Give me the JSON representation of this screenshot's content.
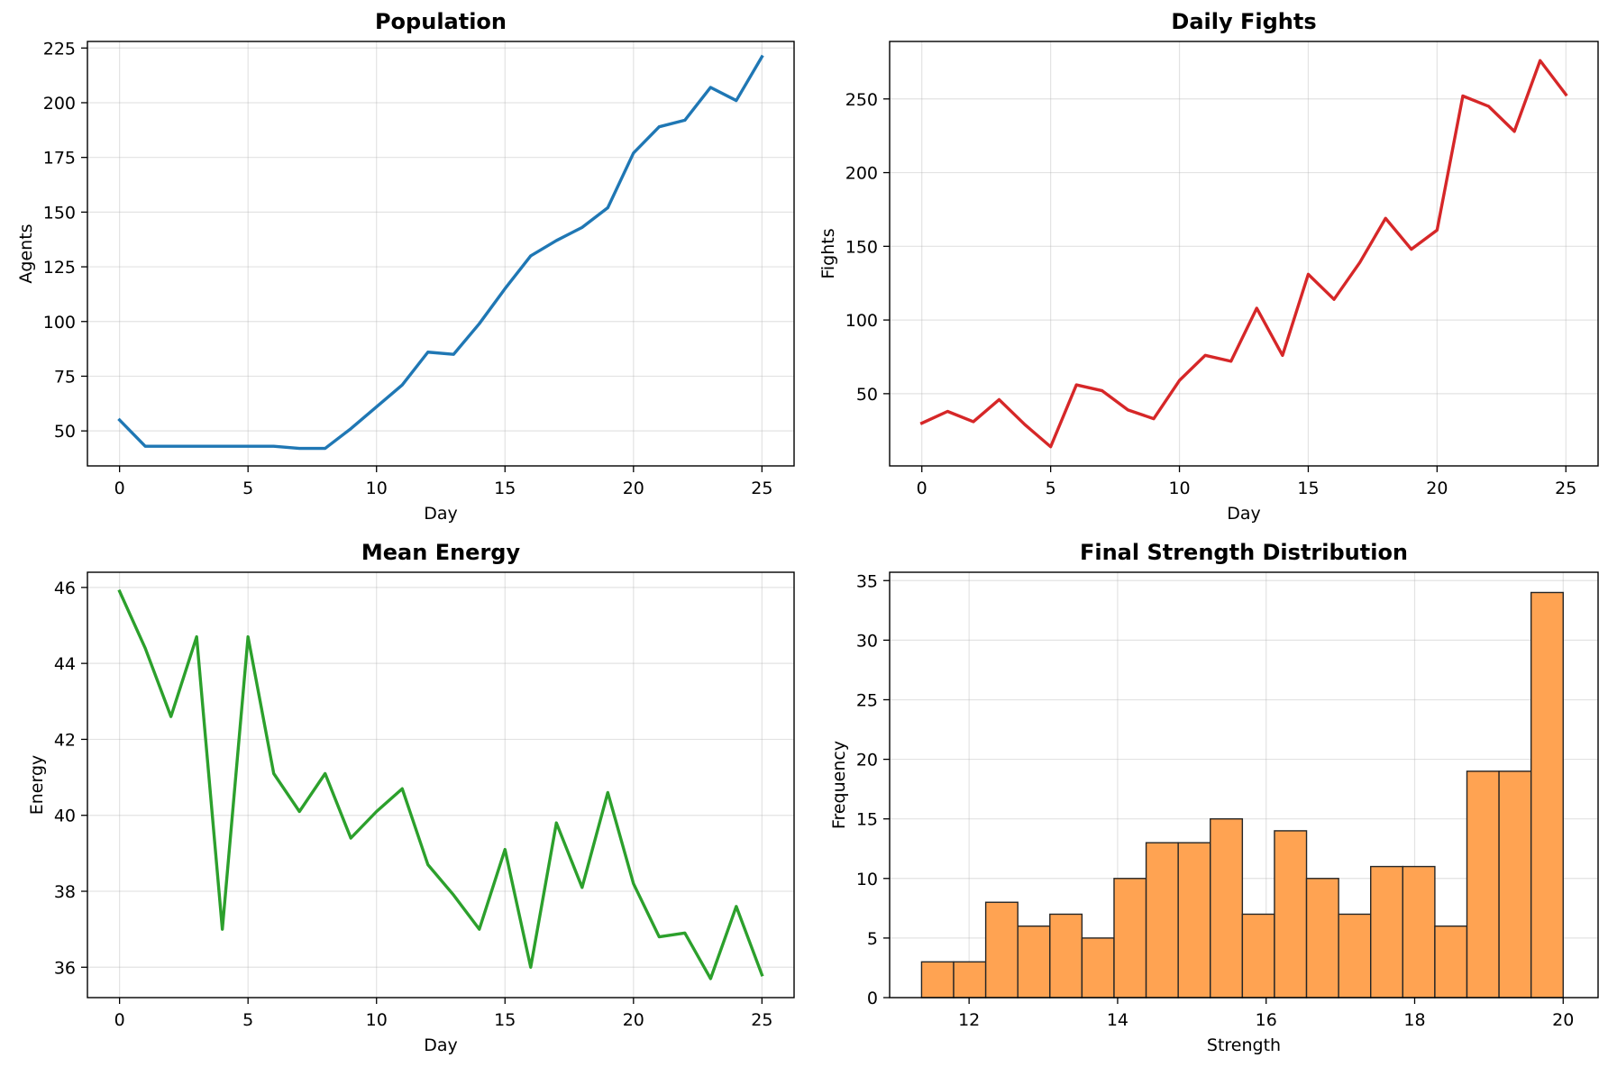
{
  "chart_data": [
    {
      "type": "line",
      "title": "Population",
      "xlabel": "Day",
      "ylabel": "Agents",
      "xlim": [
        -1.25,
        26.25
      ],
      "ylim": [
        34,
        228
      ],
      "xticks": [
        0,
        5,
        10,
        15,
        20,
        25
      ],
      "yticks": [
        50,
        75,
        100,
        125,
        150,
        175,
        200,
        225
      ],
      "grid": true,
      "color": "#1f77b4",
      "series": [
        {
          "x": [
            0,
            1,
            2,
            3,
            4,
            5,
            6,
            7,
            8,
            9,
            10,
            11,
            12,
            13,
            14,
            15,
            16,
            17,
            18,
            19,
            20,
            21,
            22,
            23,
            24,
            25
          ],
          "values": [
            55,
            43,
            43,
            43,
            43,
            43,
            43,
            42,
            42,
            51,
            61,
            71,
            86,
            85,
            99,
            115,
            130,
            137,
            143,
            152,
            177,
            189,
            192,
            207,
            201,
            221
          ]
        }
      ]
    },
    {
      "type": "line",
      "title": "Daily Fights",
      "xlabel": "Day",
      "ylabel": "Fights",
      "xlim": [
        -1.25,
        26.25
      ],
      "ylim": [
        1,
        289
      ],
      "xticks": [
        0,
        5,
        10,
        15,
        20,
        25
      ],
      "yticks": [
        50,
        100,
        150,
        200,
        250
      ],
      "grid": true,
      "color": "#d62728",
      "series": [
        {
          "x": [
            0,
            1,
            2,
            3,
            4,
            5,
            6,
            7,
            8,
            9,
            10,
            11,
            12,
            13,
            14,
            15,
            16,
            17,
            18,
            19,
            20,
            21,
            22,
            23,
            24,
            25
          ],
          "values": [
            30,
            38,
            31,
            46,
            29,
            14,
            56,
            52,
            39,
            33,
            59,
            76,
            72,
            108,
            76,
            131,
            114,
            139,
            169,
            148,
            161,
            252,
            245,
            228,
            276,
            253
          ]
        }
      ]
    },
    {
      "type": "line",
      "title": "Mean Energy",
      "xlabel": "Day",
      "ylabel": "Energy",
      "xlim": [
        -1.25,
        26.25
      ],
      "ylim": [
        35.2,
        46.4
      ],
      "xticks": [
        0,
        5,
        10,
        15,
        20,
        25
      ],
      "yticks": [
        36,
        38,
        40,
        42,
        44,
        46
      ],
      "grid": true,
      "color": "#2ca02c",
      "series": [
        {
          "x": [
            0,
            1,
            2,
            3,
            4,
            5,
            6,
            7,
            8,
            9,
            10,
            11,
            12,
            13,
            14,
            15,
            16,
            17,
            18,
            19,
            20,
            21,
            22,
            23,
            24,
            25
          ],
          "values": [
            45.9,
            44.4,
            42.6,
            44.7,
            37.0,
            44.7,
            41.1,
            40.1,
            41.1,
            39.4,
            40.1,
            40.7,
            38.7,
            37.9,
            37.0,
            39.1,
            36.0,
            39.8,
            38.1,
            40.6,
            38.2,
            36.8,
            36.9,
            35.7,
            37.6,
            35.8
          ]
        }
      ]
    },
    {
      "type": "bar",
      "title": "Final Strength Distribution",
      "xlabel": "Strength",
      "ylabel": "Frequency",
      "xlim": [
        10.93,
        20.47
      ],
      "ylim": [
        0,
        35.7
      ],
      "xticks": [
        12,
        14,
        16,
        18,
        20
      ],
      "yticks": [
        0,
        5,
        10,
        15,
        20,
        25,
        30,
        35
      ],
      "grid": true,
      "color": "#ffa352",
      "edgecolor": "#262626",
      "bin_start": 11.36,
      "bin_width": 0.432,
      "values": [
        3,
        3,
        8,
        6,
        7,
        5,
        10,
        13,
        13,
        15,
        7,
        14,
        10,
        7,
        11,
        11,
        6,
        19,
        19,
        34
      ]
    }
  ]
}
